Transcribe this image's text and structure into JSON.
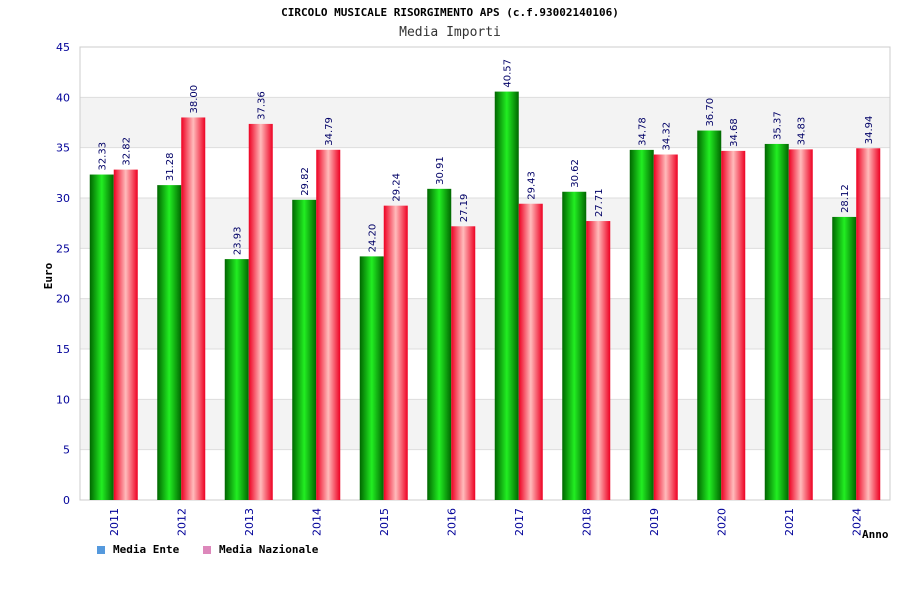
{
  "chart_data": {
    "type": "bar",
    "title": "CIRCOLO MUSICALE RISORGIMENTO APS (c.f.93002140106)",
    "subtitle": "Media Importi",
    "xlabel": "Anno",
    "ylabel": "Euro",
    "ylim": [
      0,
      45
    ],
    "yticks": [
      0,
      5,
      10,
      15,
      20,
      25,
      30,
      35,
      40,
      45
    ],
    "categories": [
      "2011",
      "2012",
      "2013",
      "2014",
      "2015",
      "2016",
      "2017",
      "2018",
      "2019",
      "2020",
      "2021",
      "2024"
    ],
    "series": [
      {
        "name": "Media Ente",
        "values": [
          32.33,
          31.28,
          23.93,
          29.82,
          24.2,
          30.91,
          40.57,
          30.62,
          34.78,
          36.7,
          35.37,
          28.12
        ],
        "labels": [
          "32.33",
          "31.28",
          "23.93",
          "29.82",
          "24.20",
          "30.91",
          "40.57",
          "30.62",
          "34.78",
          "36.70",
          "35.37",
          "28.12"
        ]
      },
      {
        "name": "Media Nazionale",
        "values": [
          32.82,
          38.0,
          37.36,
          34.79,
          29.24,
          27.19,
          29.43,
          27.71,
          34.32,
          34.68,
          34.83,
          34.94
        ],
        "labels": [
          "32.82",
          "38.00",
          "37.36",
          "34.79",
          "29.24",
          "27.19",
          "29.43",
          "27.71",
          "34.32",
          "34.68",
          "34.83",
          "34.94"
        ]
      }
    ],
    "grid": true,
    "legend_position": "bottom-left"
  },
  "legend": {
    "items": [
      {
        "label": "Media Ente",
        "color": "#5599dd"
      },
      {
        "label": "Media Nazionale",
        "color": "#dd88bb"
      }
    ]
  },
  "colors": {
    "ente_dark": "#006600",
    "ente_light": "#22ee22",
    "nazionale_dark": "#ee0022",
    "nazionale_light": "#ffbbbb",
    "axis_text": "#000099",
    "value_label": "#000066",
    "band": "#f3f3f3",
    "grid": "#dddddd"
  }
}
